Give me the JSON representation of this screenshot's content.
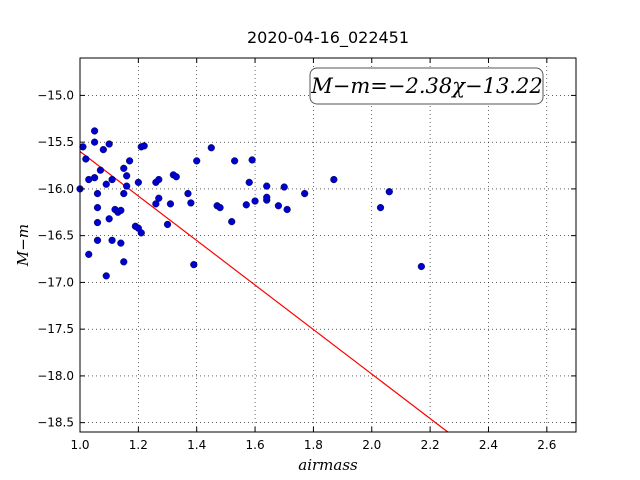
{
  "chart_data": {
    "type": "scatter",
    "title": "2020-04-16_022451",
    "xlabel": "airmass",
    "ylabel": "M−m",
    "xlim": [
      1.0,
      2.7
    ],
    "ylim": [
      -18.6,
      -14.6
    ],
    "x_ticks": [
      "1.0",
      "1.2",
      "1.4",
      "1.6",
      "1.8",
      "2.0",
      "2.2",
      "2.4",
      "2.6"
    ],
    "y_ticks": [
      "−15.0",
      "−15.5",
      "−16.0",
      "−16.5",
      "−17.0",
      "−17.5",
      "−18.0",
      "−18.5"
    ],
    "grid": true,
    "annotation": "M−m=−2.38χ−13.22",
    "fit_line": {
      "slope": -2.38,
      "intercept": -13.22,
      "color": "#ff0000"
    },
    "point_color": "#0000cc",
    "points": [
      [
        1.0,
        -16.0
      ],
      [
        1.01,
        -15.55
      ],
      [
        1.02,
        -15.68
      ],
      [
        1.03,
        -15.9
      ],
      [
        1.03,
        -16.7
      ],
      [
        1.05,
        -15.38
      ],
      [
        1.05,
        -15.88
      ],
      [
        1.05,
        -15.5
      ],
      [
        1.06,
        -16.05
      ],
      [
        1.06,
        -16.2
      ],
      [
        1.06,
        -16.55
      ],
      [
        1.06,
        -16.36
      ],
      [
        1.07,
        -15.8
      ],
      [
        1.08,
        -15.58
      ],
      [
        1.09,
        -15.95
      ],
      [
        1.09,
        -16.93
      ],
      [
        1.1,
        -15.52
      ],
      [
        1.1,
        -16.32
      ],
      [
        1.11,
        -16.55
      ],
      [
        1.11,
        -15.9
      ],
      [
        1.12,
        -16.22
      ],
      [
        1.13,
        -16.25
      ],
      [
        1.14,
        -16.23
      ],
      [
        1.14,
        -16.58
      ],
      [
        1.15,
        -16.78
      ],
      [
        1.15,
        -15.78
      ],
      [
        1.15,
        -16.05
      ],
      [
        1.16,
        -15.97
      ],
      [
        1.16,
        -15.86
      ],
      [
        1.17,
        -15.7
      ],
      [
        1.19,
        -16.4
      ],
      [
        1.2,
        -16.42
      ],
      [
        1.2,
        -15.93
      ],
      [
        1.21,
        -15.55
      ],
      [
        1.21,
        -16.47
      ],
      [
        1.22,
        -15.54
      ],
      [
        1.26,
        -16.16
      ],
      [
        1.26,
        -15.93
      ],
      [
        1.27,
        -15.9
      ],
      [
        1.27,
        -16.1
      ],
      [
        1.3,
        -16.38
      ],
      [
        1.31,
        -16.16
      ],
      [
        1.32,
        -15.85
      ],
      [
        1.33,
        -15.87
      ],
      [
        1.37,
        -16.05
      ],
      [
        1.38,
        -16.15
      ],
      [
        1.39,
        -16.81
      ],
      [
        1.4,
        -15.7
      ],
      [
        1.45,
        -15.56
      ],
      [
        1.47,
        -16.18
      ],
      [
        1.48,
        -16.2
      ],
      [
        1.52,
        -16.35
      ],
      [
        1.53,
        -15.7
      ],
      [
        1.57,
        -16.17
      ],
      [
        1.58,
        -15.93
      ],
      [
        1.59,
        -15.69
      ],
      [
        1.6,
        -16.13
      ],
      [
        1.64,
        -16.12
      ],
      [
        1.64,
        -15.97
      ],
      [
        1.64,
        -16.09
      ],
      [
        1.68,
        -16.18
      ],
      [
        1.7,
        -15.98
      ],
      [
        1.71,
        -16.22
      ],
      [
        1.77,
        -16.05
      ],
      [
        1.87,
        -15.9
      ],
      [
        2.03,
        -16.2
      ],
      [
        2.06,
        -16.03
      ],
      [
        2.17,
        -16.83
      ]
    ]
  }
}
